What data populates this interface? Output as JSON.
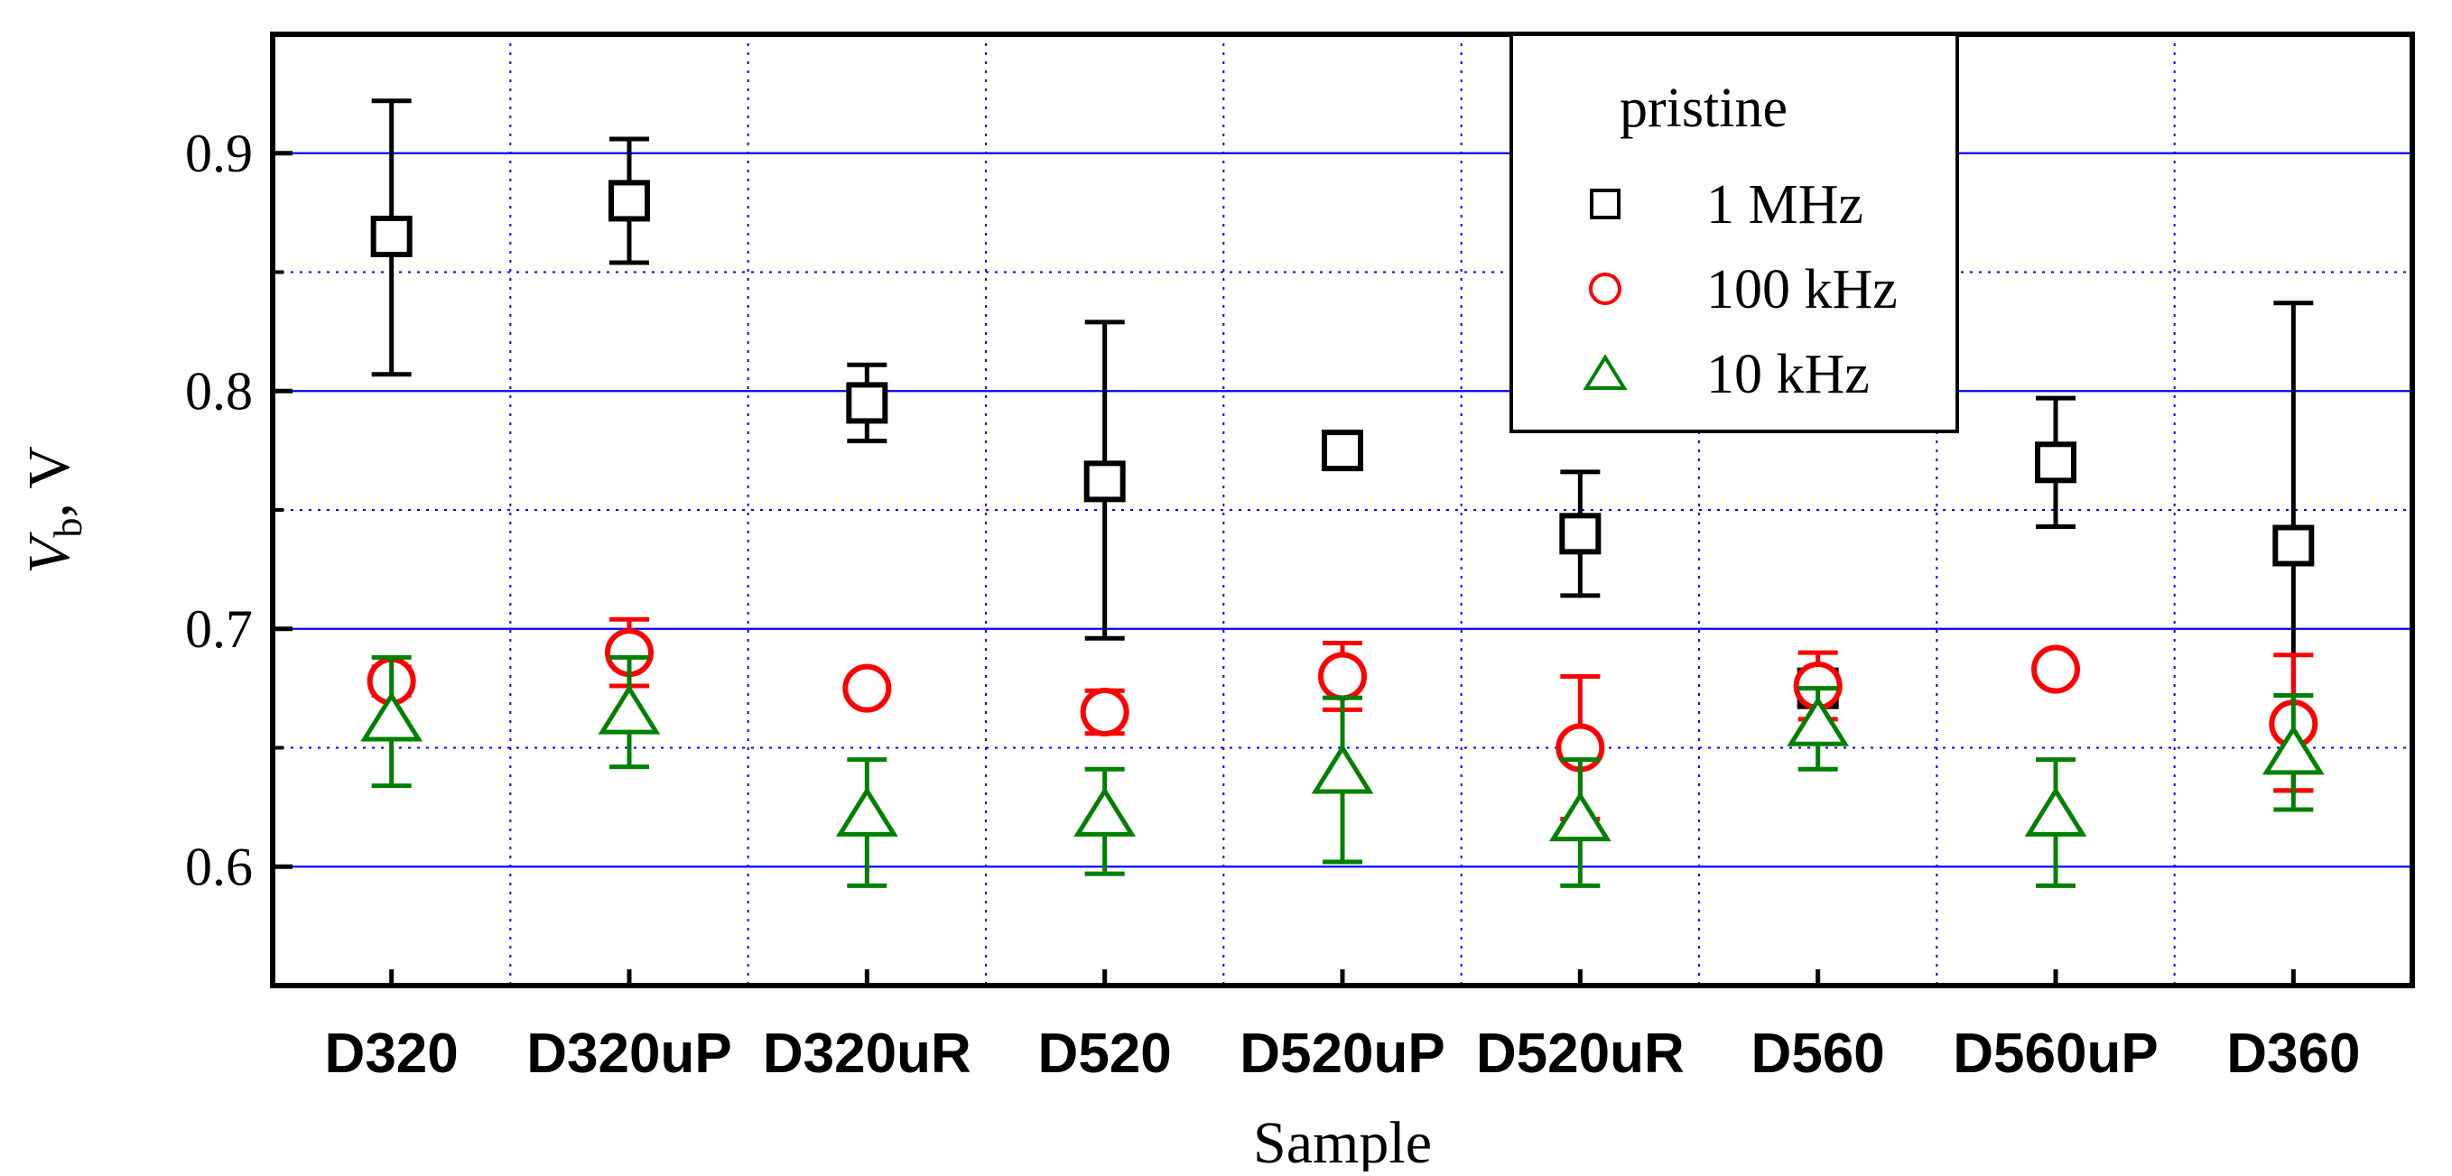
{
  "chart_data": {
    "type": "scatter",
    "title": "",
    "xlabel": "Sample",
    "ylabel": {
      "main": "V",
      "sub": "b",
      "unit": ",  V"
    },
    "ylim": [
      0.55,
      0.95
    ],
    "yticks": [
      0.6,
      0.7,
      0.8,
      0.9
    ],
    "ytick_labels": [
      "0.6",
      "0.7",
      "0.8",
      "0.9"
    ],
    "grid": {
      "major": true,
      "minor": true,
      "vertical": true
    },
    "categories": [
      "D320",
      "D320uP",
      "D320uR",
      "D520",
      "D520uP",
      "D520uR",
      "D560",
      "D560uP",
      "D360"
    ],
    "legend": {
      "title": "pristine",
      "placement": "top-center"
    },
    "series": [
      {
        "name": "1 MHz",
        "marker": "square",
        "color": "#000000",
        "values": [
          0.865,
          0.88,
          0.795,
          0.762,
          0.775,
          0.74,
          0.675,
          0.77,
          0.735
        ],
        "err_low": [
          0.807,
          0.854,
          0.779,
          0.696,
          0.771,
          0.714,
          0.668,
          0.743,
          0.632
        ],
        "err_high": [
          0.922,
          0.906,
          0.811,
          0.829,
          0.779,
          0.766,
          0.682,
          0.797,
          0.837
        ]
      },
      {
        "name": "100 kHz",
        "marker": "circle",
        "color": "#ff0000",
        "values": [
          0.678,
          0.69,
          0.675,
          0.665,
          0.68,
          0.65,
          0.676,
          0.683,
          0.66
        ],
        "err_low": [
          0.672,
          0.676,
          0.671,
          0.656,
          0.666,
          0.62,
          0.662,
          0.679,
          0.632
        ],
        "err_high": [
          0.684,
          0.704,
          0.679,
          0.674,
          0.694,
          0.68,
          0.69,
          0.687,
          0.689
        ]
      },
      {
        "name": "10 kHz",
        "marker": "triangle",
        "color": "#008000",
        "values": [
          0.662,
          0.665,
          0.622,
          0.622,
          0.64,
          0.62,
          0.66,
          0.622,
          0.648
        ],
        "err_low": [
          0.634,
          0.642,
          0.592,
          0.597,
          0.602,
          0.592,
          0.641,
          0.592,
          0.624
        ],
        "err_high": [
          0.688,
          0.688,
          0.645,
          0.641,
          0.671,
          0.645,
          0.675,
          0.645,
          0.672
        ]
      }
    ]
  }
}
